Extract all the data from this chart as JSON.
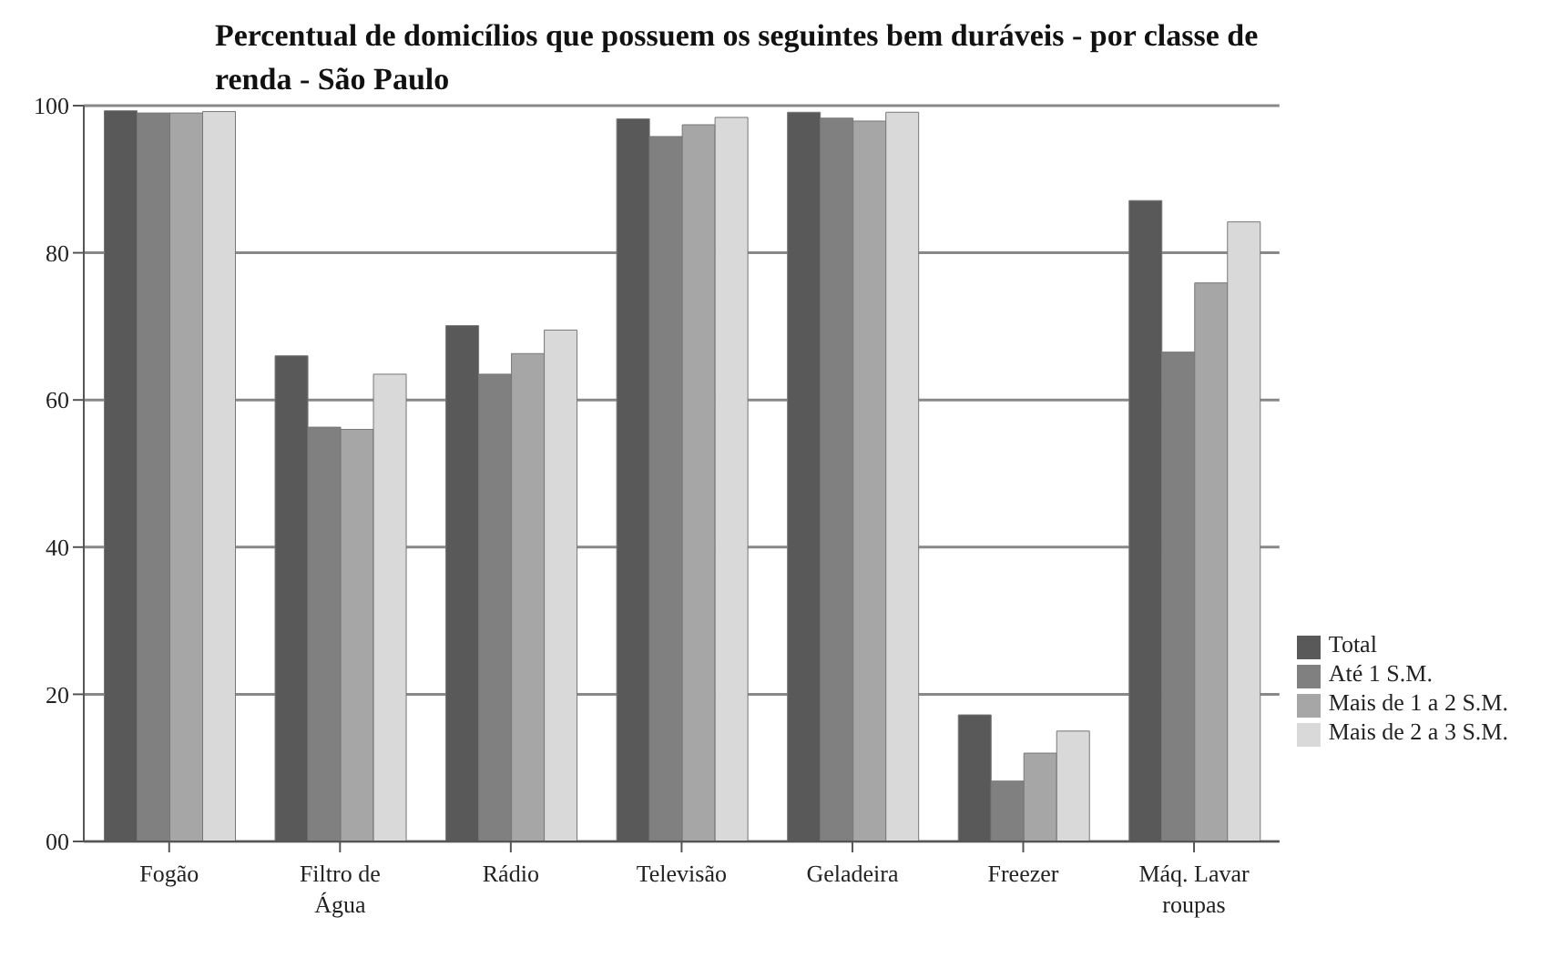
{
  "chart_data": {
    "type": "bar",
    "title": "Percentual de domicílios que possuem os seguintes bem duráveis - por classe de renda - São Paulo",
    "categories": [
      "Fogão",
      "Filtro de Água",
      "Rádio",
      "Televisão",
      "Geladeira",
      "Freezer",
      "Máq. Lavar roupas"
    ],
    "series": [
      {
        "name": "Total",
        "color": "#595959",
        "values": [
          99.3,
          66,
          70.1,
          98.2,
          99.1,
          17.2,
          87.1
        ]
      },
      {
        "name": "Até 1 S.M.",
        "color": "#808080",
        "values": [
          99,
          56.3,
          63.5,
          95.8,
          98.3,
          8.2,
          66.5
        ]
      },
      {
        "name": "Mais de 1 a 2 S.M.",
        "color": "#a6a6a6",
        "values": [
          99,
          56,
          66.3,
          97.4,
          97.9,
          12,
          75.9
        ]
      },
      {
        "name": "Mais de 2 a 3 S.M.",
        "color": "#d9d9d9",
        "values": [
          99.2,
          63.5,
          69.5,
          98.4,
          99.1,
          15,
          84.2
        ]
      }
    ],
    "ylim": [
      0,
      100
    ],
    "yticks": [
      {
        "value": 0,
        "label": "00"
      },
      20,
      40,
      60,
      80,
      100
    ],
    "grid": "y",
    "legend": "right"
  }
}
